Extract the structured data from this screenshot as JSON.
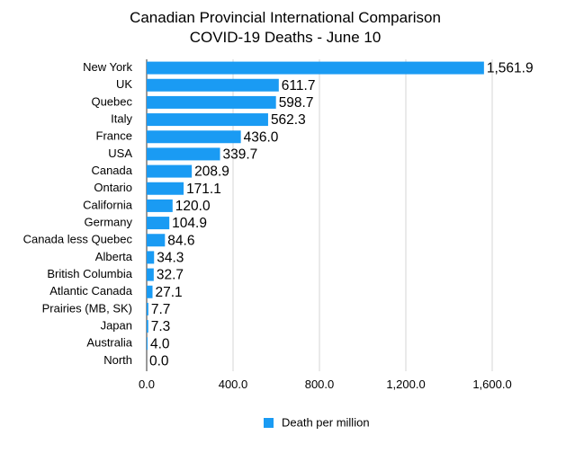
{
  "chart_data": {
    "type": "bar",
    "orientation": "horizontal",
    "title": "Canadian Provincial International Comparison",
    "subtitle": "COVID-19 Deaths - June 10",
    "categories": [
      "New York",
      "UK",
      "Quebec",
      "Italy",
      "France",
      "USA",
      "Canada",
      "Ontario",
      "California",
      "Germany",
      "Canada less Quebec",
      "Alberta",
      "British Columbia",
      "Atlantic Canada",
      "Prairies (MB, SK)",
      "Japan",
      "Australia",
      "North"
    ],
    "series": [
      {
        "name": "Death per million",
        "color": "#1a9bf3",
        "values": [
          1561.9,
          611.7,
          598.7,
          562.3,
          436.0,
          339.7,
          208.9,
          171.1,
          120.0,
          104.9,
          84.6,
          34.3,
          32.7,
          27.1,
          7.7,
          7.3,
          4.0,
          0.0
        ],
        "labels": [
          "1,561.9",
          "611.7",
          "598.7",
          "562.3",
          "436.0",
          "339.7",
          "208.9",
          "171.1",
          "120.0",
          "104.9",
          "84.6",
          "34.3",
          "32.7",
          "27.1",
          "7.7",
          "7.3",
          "4.0",
          "0.0"
        ]
      }
    ],
    "xlim": [
      0,
      1600
    ],
    "xticks": [
      0,
      400,
      800,
      1200,
      1600
    ],
    "xtick_labels": [
      "0.0",
      "400.0",
      "800.0",
      "1,200.0",
      "1,600.0"
    ],
    "grid": true,
    "legend": "bottom-center",
    "xlabel": "",
    "ylabel": ""
  }
}
